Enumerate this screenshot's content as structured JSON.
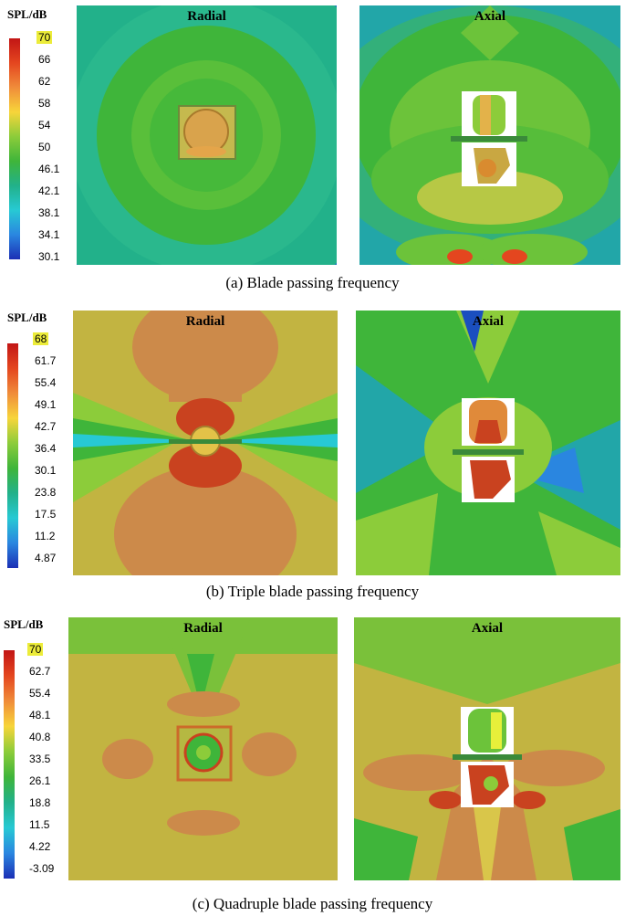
{
  "legend_title": "SPL/dB",
  "colors": [
    "#c21515",
    "#e4461f",
    "#f08c3a",
    "#f7d53a",
    "#e7ef3a",
    "#8ccc3a",
    "#3fb53a",
    "#22b18a",
    "#27c9d4",
    "#2a86e0",
    "#1b2fb5"
  ],
  "figures": [
    {
      "caption": "(a) Blade passing frequency",
      "ticks": [
        "70",
        "66",
        "62",
        "58",
        "54",
        "50",
        "46.1",
        "42.1",
        "38.1",
        "34.1",
        "30.1"
      ],
      "radial_label": "Radial",
      "axial_label": "Axial"
    },
    {
      "caption": "(b) Triple blade passing frequency",
      "ticks": [
        "68",
        "61.7",
        "55.4",
        "49.1",
        "42.7",
        "36.4",
        "30.1",
        "23.8",
        "17.5",
        "11.2",
        "4.87"
      ],
      "radial_label": "Radial",
      "axial_label": "Axial"
    },
    {
      "caption": "(c) Quadruple blade passing frequency",
      "ticks": [
        "70",
        "62.7",
        "55.4",
        "48.1",
        "40.8",
        "33.5",
        "26.1",
        "18.8",
        "11.5",
        "4.22",
        "-3.09"
      ],
      "radial_label": "Radial",
      "axial_label": "Axial"
    }
  ]
}
